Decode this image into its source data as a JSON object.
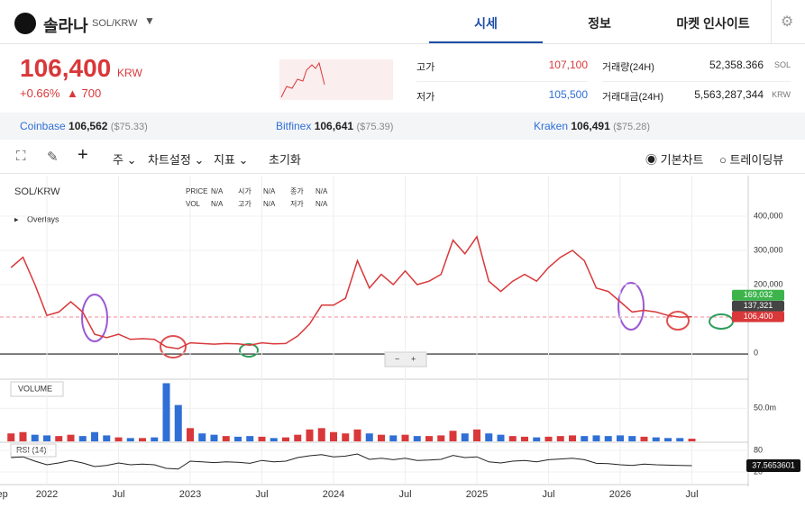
{
  "header": {
    "name": "솔라나",
    "pair": "SOL/KRW",
    "tabs": [
      "시세",
      "정보",
      "마켓 인사이트"
    ]
  },
  "price": {
    "value": "106,400",
    "unit": "KRW",
    "change_pct": "+0.66%",
    "change": "▲ 700"
  },
  "stats": [
    {
      "label": "고가",
      "value": "107,100"
    },
    {
      "label": "저가",
      "value": "105,500"
    },
    {
      "label": "거래량(24H)",
      "value": "52,358.366",
      "unit": "SOL"
    },
    {
      "label": "거래대금(24H)",
      "value": "5,563,287,344",
      "unit": "KRW"
    }
  ],
  "exchanges": [
    {
      "name": "Coinbase",
      "price": "106,562",
      "usd": "($75.33)"
    },
    {
      "name": "Bitfinex",
      "price": "106,641",
      "usd": "($75.39)"
    },
    {
      "name": "Kraken",
      "price": "106,491",
      "usd": "($75.28)"
    }
  ],
  "toolbar": {
    "items": [
      "주",
      "차트설정",
      "지표",
      "초기화"
    ],
    "modes": [
      "기본차트",
      "트레이딩뷰"
    ]
  },
  "chart_data": {
    "type": "line",
    "overlays": "Overlays",
    "info": [
      {
        "label": "PRICE",
        "value": "N/A"
      },
      {
        "label": "시가",
        "value": "N/A"
      },
      {
        "label": "종가",
        "value": "N/A"
      },
      {
        "label": "VOL",
        "value": "N/A"
      },
      {
        "label": "고가",
        "value": "N/A"
      },
      {
        "label": "저가",
        "value": "N/A"
      }
    ],
    "x": [
      "2021-10",
      "2021-11",
      "2021-12",
      "2022-01",
      "2022-02",
      "2022-03",
      "2022-04",
      "2022-05",
      "2022-06",
      "2022-07",
      "2022-08",
      "2022-09",
      "2022-10",
      "2022-11",
      "2022-12",
      "2023-01",
      "2023-02",
      "2023-03",
      "2023-04",
      "2023-05",
      "2023-06",
      "2023-07",
      "2023-08",
      "2023-09",
      "2023-10",
      "2023-11",
      "2023-12",
      "2024-01",
      "2024-02",
      "2024-03",
      "2024-04",
      "2024-05",
      "2024-06",
      "2024-07",
      "2024-08",
      "2024-09",
      "2024-10",
      "2024-11",
      "2024-12",
      "2025-01",
      "2025-02",
      "2025-03",
      "2025-04",
      "2025-05",
      "2025-06",
      "2025-07",
      "2025-08",
      "2025-09",
      "2025-10",
      "2025-11",
      "2025-12",
      "2026-01",
      "2026-02",
      "2026-03",
      "2026-04",
      "2026-05",
      "2026-06",
      "2026-07"
    ],
    "series": [
      {
        "name": "SOL/KRW",
        "color": "#d9383a",
        "values": [
          250000,
          280000,
          200000,
          110000,
          120000,
          150000,
          120000,
          55000,
          45000,
          55000,
          40000,
          42000,
          40000,
          18000,
          13000,
          30000,
          28000,
          26000,
          28000,
          27000,
          23000,
          30000,
          27000,
          28000,
          50000,
          85000,
          140000,
          140000,
          160000,
          270000,
          190000,
          230000,
          200000,
          240000,
          200000,
          210000,
          230000,
          330000,
          290000,
          340000,
          210000,
          180000,
          210000,
          230000,
          210000,
          250000,
          280000,
          300000,
          270000,
          190000,
          180000,
          150000,
          120000,
          125000,
          120000,
          110000,
          105000,
          106400
        ]
      }
    ],
    "ylim": [
      0,
      500000
    ],
    "yticks": [
      0,
      {
        "value": 200000,
        "label": "200,000"
      },
      {
        "value": 300000,
        "label": "300,000"
      },
      {
        "value": 400000,
        "label": "400,000"
      }
    ],
    "xticks": [
      {
        "value": "2021-09",
        "label": "Sep"
      },
      {
        "value": "2022-01",
        "label": "2022"
      },
      {
        "value": "2022-07",
        "label": "Jul"
      },
      {
        "value": "2023-01",
        "label": "2023"
      },
      {
        "value": "2023-07",
        "label": "Jul"
      },
      {
        "value": "2024-01",
        "label": "2024"
      },
      {
        "value": "2024-07",
        "label": "Jul"
      },
      {
        "value": "2025-01",
        "label": "2025"
      },
      {
        "value": "2025-07",
        "label": "Jul"
      },
      {
        "value": "2026-01",
        "label": "2026"
      },
      {
        "value": "2026-07",
        "label": "Jul"
      }
    ],
    "price_tags": [
      {
        "value": 169032,
        "label": "169,032",
        "color": "#3cb44b"
      },
      {
        "value": 137321,
        "label": "137,321",
        "color": "#444444"
      },
      {
        "value": 106400,
        "label": "106,400",
        "color": "#d9383a"
      }
    ],
    "volume": {
      "name": "VOLUME",
      "up_color": "#d9383a",
      "down_color": "#2f6fd6",
      "values": [
        12,
        14,
        10,
        9,
        8,
        10,
        8,
        14,
        9,
        6,
        5,
        5,
        6,
        88,
        55,
        20,
        12,
        10,
        8,
        7,
        8,
        7,
        5,
        6,
        10,
        18,
        20,
        14,
        12,
        18,
        12,
        10,
        9,
        10,
        8,
        8,
        9,
        16,
        12,
        18,
        12,
        10,
        8,
        7,
        6,
        7,
        8,
        9,
        8,
        9,
        8,
        9,
        8,
        7,
        6,
        5,
        5,
        4
      ],
      "ylim": [
        0,
        90
      ],
      "yticks": [
        {
          "value": 50,
          "label": "50.0m"
        }
      ]
    },
    "rsi": {
      "name": "RSI (14)",
      "color": "#222222",
      "values": [
        60,
        62,
        50,
        40,
        45,
        52,
        45,
        35,
        38,
        45,
        40,
        42,
        40,
        30,
        28,
        50,
        48,
        46,
        48,
        47,
        44,
        52,
        48,
        50,
        60,
        65,
        68,
        62,
        64,
        70,
        55,
        58,
        54,
        58,
        52,
        53,
        55,
        66,
        60,
        62,
        48,
        45,
        50,
        52,
        48,
        54,
        56,
        58,
        54,
        44,
        43,
        40,
        38,
        42,
        40,
        39,
        38,
        37.5653601
      ],
      "ylim": [
        0,
        100
      ],
      "yticks": [
        20,
        80
      ]
    }
  }
}
